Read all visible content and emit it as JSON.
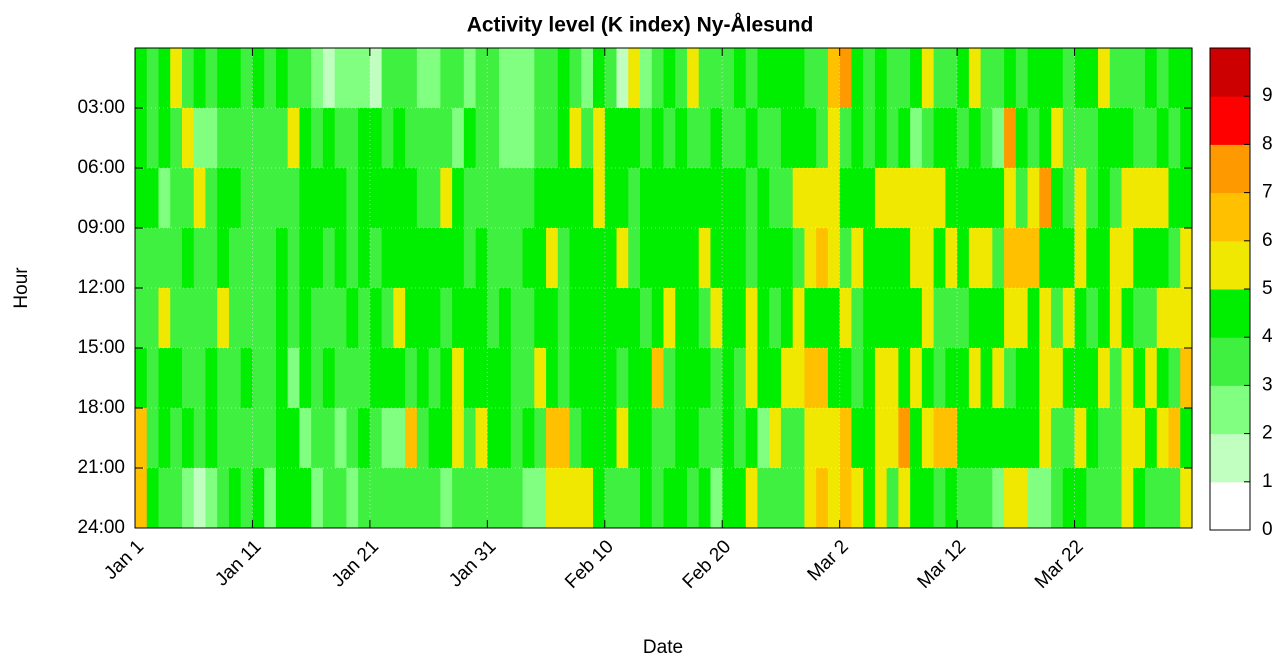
{
  "chart_data": {
    "type": "heatmap",
    "title": "Activity level (K index) Ny-Ålesund",
    "x_label": "Date",
    "y_label": "Hour",
    "x": [
      0,
      1,
      2,
      3,
      4,
      5,
      6,
      7,
      8,
      9,
      10,
      11,
      12,
      13,
      14,
      15,
      16,
      17,
      18,
      19,
      20,
      21,
      22,
      23,
      24,
      25,
      26,
      27,
      28,
      29,
      30,
      31,
      32,
      33,
      34,
      35,
      36,
      37,
      38,
      39,
      40,
      41,
      42,
      43,
      44,
      45,
      46,
      47,
      48,
      49,
      50,
      51,
      52,
      53,
      54,
      55,
      56,
      57,
      58,
      59,
      60,
      61,
      62,
      63,
      64,
      65,
      66,
      67,
      68,
      69,
      70,
      71,
      72,
      73,
      74,
      75,
      76,
      77,
      78,
      79,
      80,
      81,
      82,
      83,
      84,
      85,
      86,
      87,
      88,
      89
    ],
    "y": [
      0,
      3,
      6,
      9,
      12,
      15,
      18,
      21
    ],
    "xlim": [
      0,
      90
    ],
    "ylim": [
      0,
      24
    ],
    "y_inverted": true,
    "grid": true,
    "xticks": [
      {
        "value": 0,
        "label": "Jan 1"
      },
      {
        "value": 10,
        "label": "Jan 11"
      },
      {
        "value": 20,
        "label": "Jan 21"
      },
      {
        "value": 30,
        "label": "Jan 31"
      },
      {
        "value": 40,
        "label": "Feb 10"
      },
      {
        "value": 50,
        "label": "Feb 20"
      },
      {
        "value": 60,
        "label": "Mar 2"
      },
      {
        "value": 70,
        "label": "Mar 12"
      },
      {
        "value": 80,
        "label": "Mar 22"
      }
    ],
    "yticks": [
      {
        "value": 3,
        "label": "03:00"
      },
      {
        "value": 6,
        "label": "06:00"
      },
      {
        "value": 9,
        "label": "09:00"
      },
      {
        "value": 12,
        "label": "12:00"
      },
      {
        "value": 15,
        "label": "15:00"
      },
      {
        "value": 18,
        "label": "18:00"
      },
      {
        "value": 21,
        "label": "21:00"
      },
      {
        "value": 24,
        "label": "24:00"
      }
    ],
    "colorbar": {
      "lim": [
        0,
        10
      ],
      "ticks": [
        0,
        1,
        2,
        3,
        4,
        5,
        6,
        7,
        8,
        9
      ],
      "colors": [
        "#ffffff",
        "#c0ffc0",
        "#80ff80",
        "#40f040",
        "#00ee00",
        "#f0e800",
        "#ffc000",
        "#ff9900",
        "#ff0000",
        "#cc0000"
      ]
    },
    "values": [
      [
        4,
        3,
        4,
        5,
        3,
        4,
        3,
        4,
        4,
        3,
        4,
        3,
        4,
        3,
        3,
        2,
        1,
        2,
        2,
        2,
        1,
        3,
        3,
        3,
        2,
        2,
        3,
        3,
        2,
        3,
        3,
        2,
        2,
        2,
        3,
        3,
        4,
        3,
        2,
        4,
        3,
        1,
        5,
        2,
        3,
        4,
        3,
        5,
        3,
        3,
        3,
        4,
        3,
        4,
        4,
        4,
        4,
        3,
        3,
        6,
        7,
        4,
        3,
        4,
        3,
        3,
        4,
        5,
        3,
        3,
        4,
        5,
        3,
        3,
        4,
        3,
        4,
        4,
        4,
        3,
        4,
        4,
        5,
        3,
        3,
        3,
        4,
        3,
        4,
        4
      ],
      [
        4,
        3,
        4,
        3,
        5,
        2,
        2,
        3,
        3,
        3,
        3,
        3,
        3,
        5,
        4,
        3,
        4,
        3,
        3,
        4,
        4,
        3,
        4,
        3,
        3,
        3,
        3,
        2,
        4,
        3,
        3,
        2,
        2,
        2,
        3,
        3,
        4,
        5,
        3,
        5,
        4,
        4,
        4,
        3,
        4,
        3,
        4,
        3,
        3,
        4,
        3,
        3,
        4,
        3,
        3,
        4,
        4,
        4,
        3,
        5,
        3,
        4,
        3,
        4,
        3,
        4,
        2,
        3,
        4,
        4,
        3,
        4,
        3,
        2,
        7,
        4,
        3,
        4,
        5,
        3,
        3,
        3,
        4,
        4,
        4,
        3,
        3,
        4,
        3,
        4
      ],
      [
        4,
        4,
        2,
        3,
        3,
        5,
        3,
        4,
        4,
        3,
        3,
        3,
        3,
        3,
        4,
        4,
        4,
        4,
        3,
        4,
        4,
        4,
        4,
        4,
        3,
        3,
        5,
        4,
        3,
        3,
        3,
        3,
        3,
        3,
        4,
        4,
        4,
        4,
        4,
        5,
        4,
        4,
        3,
        4,
        4,
        4,
        4,
        4,
        4,
        4,
        4,
        4,
        3,
        4,
        3,
        3,
        5,
        5,
        5,
        5,
        4,
        4,
        4,
        5,
        5,
        5,
        5,
        5,
        5,
        4,
        4,
        4,
        4,
        4,
        5,
        3,
        5,
        7,
        4,
        3,
        5,
        3,
        4,
        3,
        5,
        5,
        5,
        5,
        4,
        4
      ],
      [
        3,
        3,
        3,
        3,
        4,
        3,
        3,
        4,
        3,
        3,
        3,
        3,
        4,
        3,
        4,
        4,
        3,
        4,
        3,
        4,
        3,
        4,
        4,
        4,
        4,
        4,
        4,
        4,
        3,
        4,
        3,
        3,
        3,
        4,
        4,
        5,
        3,
        4,
        4,
        4,
        4,
        5,
        3,
        4,
        4,
        4,
        4,
        4,
        5,
        4,
        4,
        4,
        3,
        4,
        4,
        4,
        3,
        5,
        6,
        5,
        3,
        5,
        4,
        4,
        4,
        4,
        5,
        5,
        4,
        5,
        4,
        5,
        5,
        3,
        6,
        6,
        6,
        4,
        4,
        4,
        5,
        4,
        4,
        5,
        5,
        4,
        4,
        4,
        3,
        5
      ],
      [
        3,
        3,
        5,
        3,
        3,
        3,
        3,
        5,
        3,
        3,
        3,
        3,
        4,
        3,
        4,
        3,
        3,
        3,
        4,
        3,
        4,
        3,
        5,
        4,
        4,
        4,
        3,
        4,
        4,
        4,
        3,
        4,
        3,
        3,
        4,
        4,
        3,
        4,
        4,
        4,
        4,
        4,
        4,
        3,
        4,
        5,
        4,
        4,
        3,
        5,
        4,
        4,
        5,
        4,
        3,
        4,
        5,
        4,
        4,
        4,
        5,
        3,
        4,
        4,
        4,
        4,
        4,
        5,
        3,
        3,
        3,
        4,
        4,
        4,
        5,
        5,
        4,
        5,
        3,
        5,
        4,
        3,
        4,
        5,
        4,
        3,
        3,
        5,
        5,
        5
      ],
      [
        4,
        3,
        4,
        4,
        3,
        3,
        4,
        3,
        3,
        4,
        3,
        3,
        4,
        2,
        4,
        3,
        4,
        3,
        3,
        3,
        4,
        4,
        4,
        3,
        4,
        3,
        4,
        5,
        4,
        4,
        4,
        4,
        3,
        3,
        5,
        4,
        3,
        4,
        4,
        4,
        4,
        3,
        4,
        4,
        6,
        3,
        4,
        4,
        4,
        3,
        4,
        3,
        5,
        4,
        4,
        5,
        5,
        6,
        6,
        4,
        4,
        3,
        4,
        5,
        5,
        4,
        5,
        4,
        3,
        4,
        4,
        5,
        4,
        5,
        3,
        4,
        4,
        5,
        5,
        4,
        4,
        4,
        5,
        3,
        5,
        4,
        5,
        4,
        3,
        6
      ],
      [
        6,
        3,
        4,
        3,
        4,
        3,
        4,
        3,
        3,
        3,
        3,
        3,
        4,
        4,
        2,
        3,
        3,
        2,
        3,
        4,
        3,
        2,
        2,
        6,
        3,
        4,
        4,
        5,
        3,
        5,
        4,
        4,
        3,
        4,
        3,
        6,
        6,
        3,
        4,
        4,
        4,
        5,
        4,
        4,
        3,
        3,
        4,
        4,
        3,
        3,
        4,
        3,
        4,
        2,
        5,
        3,
        3,
        5,
        5,
        5,
        6,
        4,
        4,
        5,
        5,
        7,
        4,
        5,
        6,
        6,
        4,
        4,
        4,
        4,
        4,
        4,
        4,
        5,
        3,
        3,
        5,
        4,
        3,
        3,
        5,
        5,
        4,
        5,
        6,
        4
      ],
      [
        6,
        4,
        3,
        3,
        2,
        1,
        2,
        3,
        4,
        3,
        4,
        2,
        4,
        4,
        4,
        2,
        3,
        3,
        2,
        3,
        3,
        3,
        3,
        3,
        3,
        3,
        2,
        3,
        3,
        3,
        3,
        3,
        3,
        2,
        2,
        5,
        5,
        5,
        5,
        4,
        3,
        3,
        3,
        4,
        3,
        4,
        4,
        3,
        4,
        2,
        4,
        4,
        5,
        3,
        3,
        3,
        3,
        5,
        6,
        5,
        6,
        5,
        4,
        5,
        3,
        5,
        4,
        4,
        3,
        4,
        3,
        3,
        3,
        2,
        5,
        5,
        2,
        2,
        3,
        4,
        4,
        3,
        3,
        3,
        5,
        4,
        3,
        3,
        3,
        5
      ]
    ]
  }
}
